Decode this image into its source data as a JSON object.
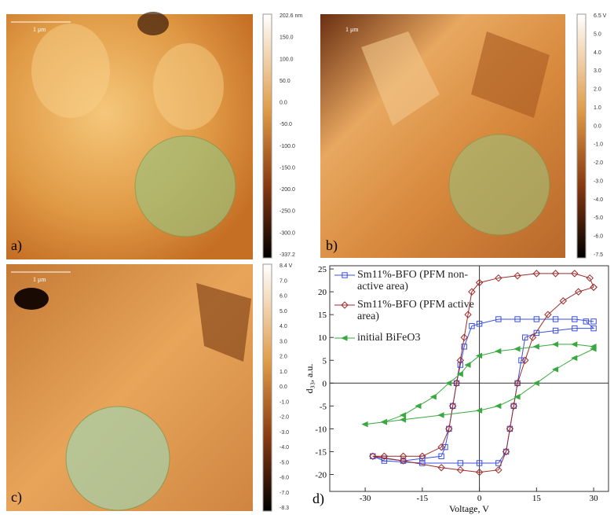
{
  "panels": {
    "a": {
      "label": "a)",
      "scale": "1 μm",
      "colorbar": [
        "202.6 nm",
        "150.0",
        "100.0",
        "50.0",
        "0.0",
        "-50.0",
        "-100.0",
        "-150.0",
        "-200.0",
        "-250.0",
        "-300.0",
        "-337.2"
      ]
    },
    "b": {
      "label": "b)",
      "scale": "1 μm",
      "colorbar": [
        "6.5 V",
        "5.0",
        "4.0",
        "3.0",
        "2.0",
        "1.0",
        "0.0",
        "-1.0",
        "-2.0",
        "-3.0",
        "-4.0",
        "-5.0",
        "-6.0",
        "-7.5"
      ]
    },
    "c": {
      "label": "c)",
      "scale": "1 μm",
      "colorbar": [
        "8.4 V",
        "7.0",
        "6.0",
        "5.0",
        "4.0",
        "3.0",
        "2.0",
        "1.0",
        "0.0",
        "-1.0",
        "-2.0",
        "-3.0",
        "-4.0",
        "-5.0",
        "-6.0",
        "-7.0",
        "-8.3"
      ]
    }
  },
  "chart_data": {
    "type": "line",
    "label": "d)",
    "xlabel": "Voltage, V",
    "ylabel": "d₃₃, a.u.",
    "xlim": [
      -39.3,
      33.9
    ],
    "ylim": [
      -23.7,
      25.7
    ],
    "xticks": [
      -30,
      -15,
      0,
      15,
      30
    ],
    "yticks": [
      -20,
      -15,
      -10,
      -5,
      0,
      5,
      10,
      15,
      20,
      25
    ],
    "series": [
      {
        "name": "Sm11%-BFO (PFM non-active area)",
        "color": "#3a4fe0",
        "marker": "square",
        "x": [
          30,
          25,
          20,
          15,
          10,
          5,
          0,
          -2,
          -4,
          -5,
          -6,
          -7,
          -8,
          -9,
          -10,
          -15,
          -20,
          -25,
          -28,
          -25,
          -15,
          -5,
          0,
          5,
          7,
          8,
          9,
          10,
          11,
          12,
          15,
          20,
          25,
          30,
          28
        ],
        "values": [
          13.5,
          14,
          14,
          14,
          14,
          14,
          13,
          12.5,
          8,
          4,
          0,
          -5,
          -10,
          -14,
          -16,
          -16.5,
          -17,
          -16.5,
          -16,
          -17,
          -17.5,
          -17.5,
          -17.5,
          -17.5,
          -15,
          -10,
          -5,
          0,
          5,
          10,
          11,
          11.5,
          12,
          12,
          13.5
        ]
      },
      {
        "name": "Sm11%-BFO (PFM active area)",
        "color": "#9c2b2b",
        "marker": "diamond",
        "x": [
          30,
          29,
          25,
          20,
          15,
          10,
          5,
          0,
          -2,
          -3,
          -4,
          -5,
          -6,
          -7,
          -8,
          -10,
          -15,
          -20,
          -25,
          -28,
          -20,
          -10,
          -5,
          0,
          5,
          7,
          8,
          9,
          10,
          12,
          14,
          18,
          22,
          26,
          30
        ],
        "values": [
          21,
          23,
          24,
          24,
          24,
          23.5,
          23,
          22,
          20,
          15,
          10,
          5,
          0,
          -5,
          -10,
          -14,
          -16,
          -16,
          -16,
          -16,
          -17,
          -18.5,
          -19,
          -19.5,
          -19,
          -15,
          -10,
          -5,
          0,
          5,
          10,
          15,
          18,
          20,
          21
        ]
      },
      {
        "name": "initial BiFeO3",
        "color": "#3aa840",
        "marker": "triangle",
        "x": [
          30,
          25,
          20,
          15,
          10,
          5,
          0,
          -3,
          -5,
          -8,
          -12,
          -16,
          -20,
          -25,
          -30,
          -25,
          -20,
          -10,
          0,
          5,
          10,
          15,
          20,
          25,
          30
        ],
        "values": [
          8,
          8.5,
          8.5,
          8,
          7.5,
          7,
          6,
          4,
          2,
          0,
          -3,
          -5,
          -7,
          -8.5,
          -9,
          -8.5,
          -8,
          -7,
          -6,
          -5,
          -3,
          0,
          3,
          5.5,
          7.5
        ]
      }
    ]
  }
}
